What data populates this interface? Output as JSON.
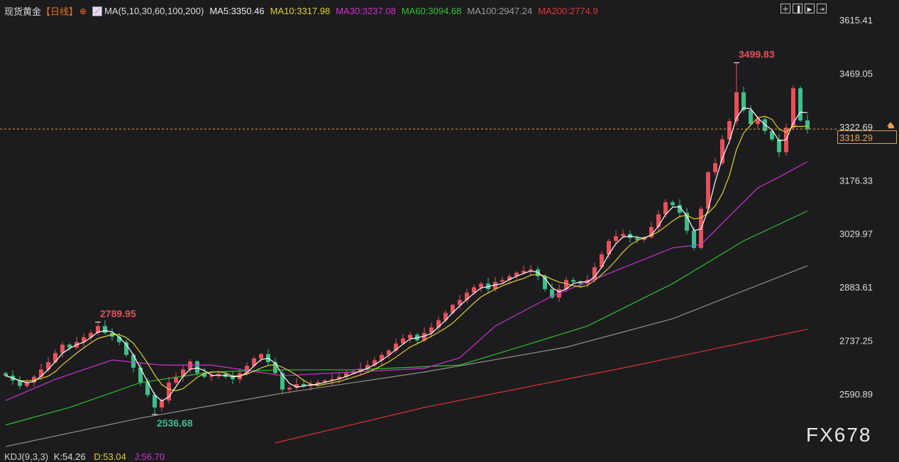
{
  "header": {
    "symbol": "现货黄金",
    "period": "【日线】",
    "ma_label": "MA(5,10,30,60,100,200)",
    "ma5": "MA5:3350.46",
    "ma10": "MA10:3317.98",
    "ma30": "MA30:3237.08",
    "ma60": "MA60:3094.68",
    "ma100": "MA100:2947.24",
    "ma200": "MA200:2774.9",
    "tools": [
      "crosshair-icon",
      "bar-start-icon",
      "play-icon",
      "bar-end-icon"
    ]
  },
  "indicator": {
    "kdj": "KDJ(9,3,3)",
    "k": "K:54.26",
    "d": "D:53.04",
    "j": "J:56.70"
  },
  "watermark": "FX678",
  "colors": {
    "up": "#e8505b",
    "down": "#3fbf8a",
    "ma5": "#ffffff",
    "ma10": "#e0d030",
    "ma30": "#d030d0",
    "ma60": "#30c030",
    "ma100": "#909090",
    "ma200": "#e03030",
    "last_price": "#e8a050"
  },
  "chart_data": {
    "type": "candlestick",
    "yaxis_ticks": [
      "3615.41",
      "3469.05",
      "3322.69",
      "3176.33",
      "3029.97",
      "2883.61",
      "2737.25",
      "2590.89"
    ],
    "ylim": [
      2420,
      3640
    ],
    "last_price": "3318.29",
    "first_open": 2650,
    "closes": [
      2643,
      2630,
      2615,
      2625,
      2640,
      2660,
      2680,
      2705,
      2728,
      2720,
      2735,
      2748,
      2760,
      2779,
      2760,
      2750,
      2735,
      2700,
      2665,
      2625,
      2590,
      2556,
      2575,
      2624,
      2640,
      2660,
      2682,
      2650,
      2640,
      2643,
      2648,
      2640,
      2633,
      2650,
      2670,
      2690,
      2702,
      2680,
      2650,
      2605,
      2610,
      2620,
      2614,
      2620,
      2625,
      2630,
      2633,
      2640,
      2650,
      2655,
      2662,
      2672,
      2685,
      2700,
      2712,
      2731,
      2745,
      2755,
      2740,
      2760,
      2775,
      2795,
      2815,
      2837,
      2850,
      2870,
      2885,
      2895,
      2880,
      2900,
      2905,
      2915,
      2925,
      2930,
      2934,
      2915,
      2880,
      2857,
      2880,
      2905,
      2900,
      2895,
      2905,
      2940,
      2975,
      3012,
      3025,
      3031,
      3020,
      3015,
      3022,
      3050,
      3085,
      3118,
      3110,
      3089,
      3040,
      2993,
      3100,
      3200,
      3225,
      3290,
      3340,
      3419,
      3370,
      3332,
      3345,
      3313,
      3290,
      3255,
      3322,
      3430,
      3342,
      3318
    ],
    "annotations": [
      {
        "index": 13,
        "type": "high",
        "value": "2789.95"
      },
      {
        "index": 21,
        "type": "low",
        "value": "2536.68"
      },
      {
        "index": 103,
        "type": "high",
        "value": "3499.83"
      }
    ],
    "moving_averages": {
      "ma30": [
        [
          0,
          2575
        ],
        [
          7,
          2633
        ],
        [
          15,
          2686
        ],
        [
          22,
          2672
        ],
        [
          29,
          2672
        ],
        [
          39,
          2643
        ],
        [
          49,
          2653
        ],
        [
          59,
          2663
        ],
        [
          64,
          2692
        ],
        [
          69,
          2779
        ],
        [
          77,
          2861
        ],
        [
          84,
          2915
        ],
        [
          94,
          2993
        ],
        [
          98,
          3002
        ],
        [
          102,
          3080
        ],
        [
          106,
          3157
        ],
        [
          109,
          3187
        ],
        [
          113,
          3229
        ]
      ],
      "ma60": [
        [
          0,
          2508
        ],
        [
          9,
          2556
        ],
        [
          19,
          2624
        ],
        [
          29,
          2653
        ],
        [
          39,
          2659
        ],
        [
          49,
          2659
        ],
        [
          64,
          2672
        ],
        [
          74,
          2731
        ],
        [
          82,
          2779
        ],
        [
          94,
          2895
        ],
        [
          104,
          3012
        ],
        [
          113,
          3094
        ]
      ],
      "ma100": [
        [
          0,
          2449
        ],
        [
          19,
          2527
        ],
        [
          39,
          2595
        ],
        [
          59,
          2653
        ],
        [
          79,
          2721
        ],
        [
          94,
          2799
        ],
        [
          113,
          2944
        ]
      ],
      "ma200": [
        [
          38,
          2459
        ],
        [
          59,
          2556
        ],
        [
          89,
          2672
        ],
        [
          113,
          2770
        ]
      ]
    }
  }
}
